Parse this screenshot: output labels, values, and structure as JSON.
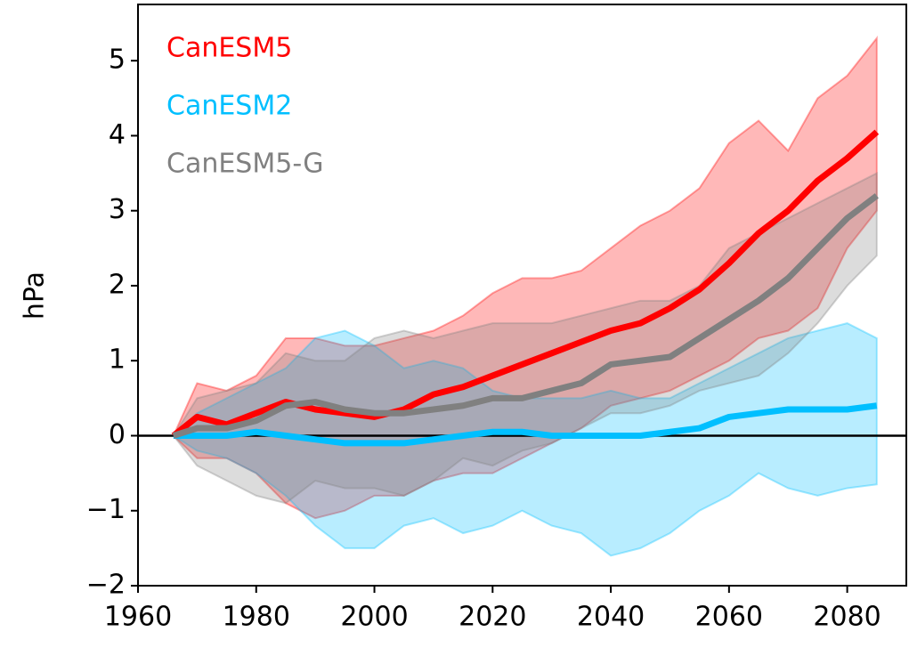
{
  "chart_data": {
    "type": "line-band",
    "y_label": "hPa",
    "x": [
      1966,
      1970,
      1975,
      1980,
      1985,
      1990,
      1995,
      2000,
      2005,
      2010,
      2015,
      2020,
      2025,
      2030,
      2035,
      2040,
      2045,
      2050,
      2055,
      2060,
      2065,
      2070,
      2075,
      2080,
      2085
    ],
    "series": [
      {
        "name": "CanESM5",
        "color": "#ff0000",
        "values": [
          0,
          0.25,
          0.15,
          0.3,
          0.45,
          0.35,
          0.3,
          0.25,
          0.35,
          0.55,
          0.65,
          0.8,
          0.95,
          1.1,
          1.25,
          1.4,
          1.5,
          1.7,
          1.95,
          2.3,
          2.7,
          3.0,
          3.4,
          3.7,
          4.05
        ],
        "upper": [
          0,
          0.7,
          0.6,
          0.8,
          1.3,
          1.3,
          1.2,
          1.2,
          1.3,
          1.4,
          1.6,
          1.9,
          2.1,
          2.1,
          2.2,
          2.5,
          2.8,
          3.0,
          3.3,
          3.9,
          4.2,
          3.8,
          4.5,
          4.8,
          5.3
        ],
        "lower": [
          0,
          -0.3,
          -0.3,
          -0.5,
          -0.9,
          -1.1,
          -1.0,
          -0.8,
          -0.8,
          -0.6,
          -0.5,
          -0.5,
          -0.3,
          -0.1,
          0.1,
          0.4,
          0.5,
          0.6,
          0.8,
          1.0,
          1.3,
          1.4,
          1.7,
          2.5,
          3.0
        ]
      },
      {
        "name": "CanESM2",
        "color": "#00bfff",
        "values": [
          0,
          0.0,
          0.0,
          0.05,
          0.0,
          -0.05,
          -0.1,
          -0.1,
          -0.1,
          -0.05,
          0.0,
          0.05,
          0.05,
          0.0,
          0.0,
          0.0,
          0.0,
          0.05,
          0.1,
          0.25,
          0.3,
          0.35,
          0.35,
          0.35,
          0.4
        ],
        "upper": [
          0,
          0.3,
          0.5,
          0.7,
          0.9,
          1.3,
          1.4,
          1.2,
          0.9,
          1.0,
          0.9,
          0.6,
          0.5,
          0.5,
          0.5,
          0.6,
          0.5,
          0.5,
          0.7,
          0.9,
          1.1,
          1.3,
          1.4,
          1.5,
          1.3
        ],
        "lower": [
          0,
          -0.2,
          -0.3,
          -0.5,
          -0.8,
          -1.2,
          -1.5,
          -1.5,
          -1.2,
          -1.1,
          -1.3,
          -1.2,
          -1.0,
          -1.2,
          -1.3,
          -1.6,
          -1.5,
          -1.3,
          -1.0,
          -0.8,
          -0.5,
          -0.7,
          -0.8,
          -0.7,
          -0.65
        ]
      },
      {
        "name": "CanESM5-G",
        "color": "#808080",
        "values": [
          0,
          0.1,
          0.1,
          0.2,
          0.4,
          0.45,
          0.35,
          0.3,
          0.3,
          0.35,
          0.4,
          0.5,
          0.5,
          0.6,
          0.7,
          0.95,
          1.0,
          1.05,
          1.3,
          1.55,
          1.8,
          2.1,
          2.5,
          2.9,
          3.2
        ],
        "upper": [
          0,
          0.5,
          0.6,
          0.7,
          1.1,
          1.0,
          1.0,
          1.3,
          1.4,
          1.3,
          1.4,
          1.5,
          1.5,
          1.5,
          1.6,
          1.7,
          1.8,
          1.8,
          2.0,
          2.5,
          2.7,
          2.9,
          3.1,
          3.3,
          3.5
        ],
        "lower": [
          0,
          -0.4,
          -0.6,
          -0.8,
          -0.9,
          -0.6,
          -0.7,
          -0.7,
          -0.8,
          -0.6,
          -0.3,
          -0.4,
          -0.2,
          -0.1,
          0.1,
          0.3,
          0.3,
          0.4,
          0.6,
          0.7,
          0.8,
          1.1,
          1.5,
          2.0,
          2.4
        ]
      }
    ],
    "xlim": [
      1960,
      2090
    ],
    "xticks": [
      1960,
      1980,
      2000,
      2020,
      2040,
      2060,
      2080
    ],
    "ylim": [
      -2,
      5.75
    ],
    "yticks": [
      {
        "value": -2,
        "label": "−2"
      },
      {
        "value": -1,
        "label": "−1"
      },
      0,
      1,
      2,
      3,
      4,
      5
    ],
    "hline": 0,
    "legend": "upper-left"
  }
}
